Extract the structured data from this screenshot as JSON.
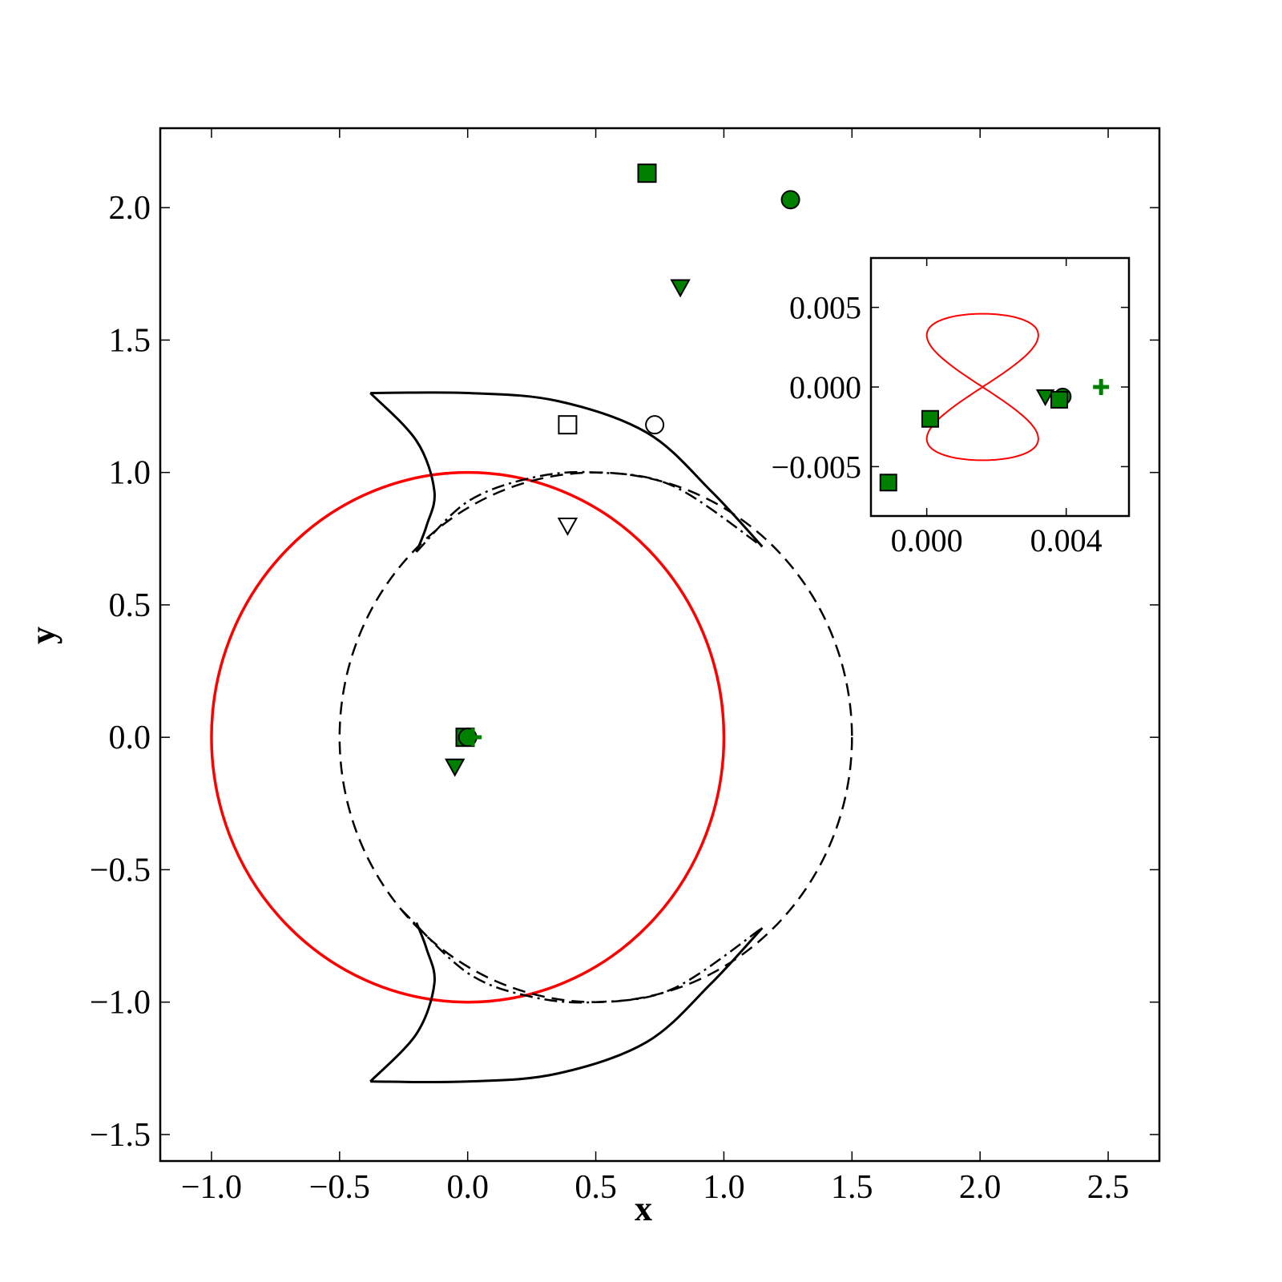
{
  "chart_data": [
    {
      "type": "scatter",
      "xlabel": "x",
      "ylabel": "y",
      "xlim": [
        -1.2,
        2.7
      ],
      "ylim": [
        -1.6,
        2.3
      ],
      "xticks": [
        -1.0,
        -0.5,
        0.0,
        0.5,
        1.0,
        1.5,
        2.0,
        2.5
      ],
      "yticks": [
        -1.5,
        -1.0,
        -0.5,
        0.0,
        0.5,
        1.0,
        1.5,
        2.0
      ],
      "xtick_labels": [
        "−1.0",
        "−0.5",
        "0.0",
        "0.5",
        "1.0",
        "1.5",
        "2.0",
        "2.5"
      ],
      "ytick_labels": [
        "−1.5",
        "−1.0",
        "−0.5",
        "0.0",
        "0.5",
        "1.0",
        "1.5",
        "2.0"
      ],
      "curves": [
        {
          "kind": "circle",
          "center": [
            0,
            0
          ],
          "radius": 1.0,
          "color": "#ff0000",
          "style": "solid"
        },
        {
          "kind": "circle",
          "center": [
            0.5,
            0
          ],
          "radius": 1.0,
          "color": "#000000",
          "style": "dashed"
        },
        {
          "kind": "lobe-boundary",
          "color": "#000000",
          "style": "solid",
          "upper_top": [
            [
              -0.38,
              1.3
            ],
            [
              0.0,
              1.3
            ],
            [
              0.35,
              1.27
            ],
            [
              0.7,
              1.15
            ],
            [
              0.95,
              0.93
            ],
            [
              1.15,
              0.72
            ]
          ],
          "upper_inner": [
            [
              -0.38,
              1.3
            ],
            [
              -0.2,
              1.12
            ],
            [
              -0.13,
              0.93
            ],
            [
              -0.16,
              0.8
            ],
            [
              -0.2,
              0.7
            ]
          ],
          "upper_dashdot": [
            [
              -0.2,
              0.7
            ],
            [
              0.0,
              0.89
            ],
            [
              0.25,
              0.98
            ],
            [
              0.5,
              1.0
            ],
            [
              0.8,
              0.95
            ],
            [
              1.15,
              0.72
            ]
          ],
          "lower_top": [
            [
              -0.38,
              -1.3
            ],
            [
              0.0,
              -1.3
            ],
            [
              0.35,
              -1.27
            ],
            [
              0.7,
              -1.15
            ],
            [
              0.95,
              -0.93
            ],
            [
              1.15,
              -0.72
            ]
          ],
          "lower_inner": [
            [
              -0.38,
              -1.3
            ],
            [
              -0.2,
              -1.12
            ],
            [
              -0.13,
              -0.93
            ],
            [
              -0.16,
              -0.8
            ],
            [
              -0.2,
              -0.7
            ]
          ],
          "lower_dashdot": [
            [
              -0.26,
              -0.65
            ],
            [
              0.0,
              -0.89
            ],
            [
              0.25,
              -0.98
            ],
            [
              0.5,
              -1.0
            ],
            [
              0.8,
              -0.95
            ],
            [
              1.15,
              -0.72
            ]
          ]
        }
      ],
      "points": [
        {
          "x": 0.7,
          "y": 2.13,
          "marker": "square",
          "fill": "#008000"
        },
        {
          "x": 1.26,
          "y": 2.03,
          "marker": "circle",
          "fill": "#008000"
        },
        {
          "x": 0.83,
          "y": 1.7,
          "marker": "triangle-down",
          "fill": "#008000"
        },
        {
          "x": 0.39,
          "y": 1.18,
          "marker": "square",
          "fill": "none"
        },
        {
          "x": 0.73,
          "y": 1.18,
          "marker": "circle",
          "fill": "none"
        },
        {
          "x": 0.39,
          "y": 0.8,
          "marker": "triangle-down",
          "fill": "none"
        },
        {
          "x": -0.01,
          "y": 0.0,
          "marker": "square",
          "fill": "#008000"
        },
        {
          "x": 0.0,
          "y": 0.0,
          "marker": "circle",
          "fill": "#008000"
        },
        {
          "x": -0.05,
          "y": -0.11,
          "marker": "triangle-down",
          "fill": "#008000"
        },
        {
          "x": 0.02,
          "y": 0.0,
          "marker": "plus",
          "fill": "#008000"
        }
      ]
    },
    {
      "type": "scatter",
      "inset": true,
      "xlim": [
        -0.0016,
        0.0058
      ],
      "ylim": [
        -0.0081,
        0.0081
      ],
      "xticks": [
        0.0,
        0.004
      ],
      "yticks": [
        -0.005,
        0.0,
        0.005
      ],
      "xtick_labels": [
        "0.000",
        "0.004"
      ],
      "ytick_labels": [
        "−0.005",
        "0.000",
        "0.005"
      ],
      "curves": [
        {
          "kind": "figure-eight",
          "center": [
            0.0016,
            0.0
          ],
          "half_width": 0.0016,
          "half_height": 0.0046,
          "color": "#ff0000"
        }
      ],
      "points": [
        {
          "x": -0.0011,
          "y": -0.006,
          "marker": "square",
          "fill": "#008000"
        },
        {
          "x": 0.0001,
          "y": -0.002,
          "marker": "square",
          "fill": "#008000"
        },
        {
          "x": 0.0039,
          "y": -0.0006,
          "marker": "circle",
          "fill": "#008000"
        },
        {
          "x": 0.0034,
          "y": -0.0006,
          "marker": "triangle-down",
          "fill": "#008000"
        },
        {
          "x": 0.0038,
          "y": -0.0008,
          "marker": "square",
          "fill": "#008000"
        },
        {
          "x": 0.005,
          "y": 0.0,
          "marker": "plus",
          "fill": "#008000"
        }
      ]
    }
  ]
}
